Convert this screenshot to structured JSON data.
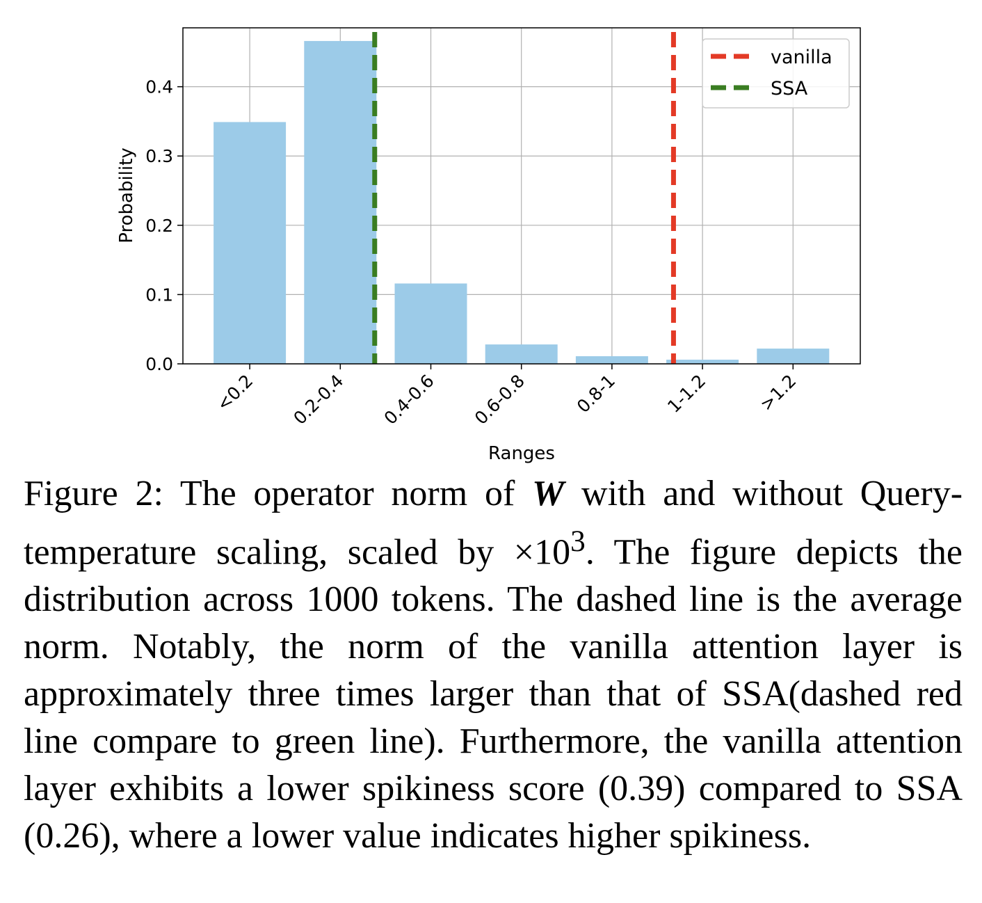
{
  "chart_data": {
    "type": "bar",
    "categories": [
      "<0.2",
      "0.2-0.4",
      "0.4-0.6",
      "0.6-0.8",
      "0.8-1",
      "1-1.2",
      ">1.2"
    ],
    "values": [
      0.349,
      0.466,
      0.116,
      0.028,
      0.011,
      0.006,
      0.022
    ],
    "title": "",
    "xlabel": "Ranges",
    "ylabel": "Probability",
    "ylim": [
      0,
      0.485
    ],
    "yticks": [
      0.0,
      0.1,
      0.2,
      0.3,
      0.4
    ],
    "ytick_labels": [
      "0.0",
      "0.1",
      "0.2",
      "0.3",
      "0.4"
    ],
    "grid": true,
    "bar_color": "#9ccbe8",
    "legend_position": "top-right",
    "reference_lines": [
      {
        "name": "vanilla",
        "category_position": 4.68,
        "color": "#e33a26",
        "style": "dashed"
      },
      {
        "name": "SSA",
        "category_position": 1.38,
        "color": "#3a7d22",
        "style": "dashed"
      }
    ]
  },
  "caption": {
    "label": "Figure 2:",
    "text_before_symbol": "The operator norm of",
    "symbol": "W",
    "text_after_symbol": "with and without Query-temperature scaling, scaled by ×10",
    "superscript": "3",
    "text_end": ". The figure depicts the distribution across 1000 tokens. The dashed line is the average norm. Notably, the norm of the vanilla attention layer is approximately three times larger than that of SSA(dashed red line compare to green line). Furthermore, the vanilla attention layer exhibits a lower spikiness score (0.39) compared to SSA (0.26), where a lower value indicates higher spikiness."
  }
}
